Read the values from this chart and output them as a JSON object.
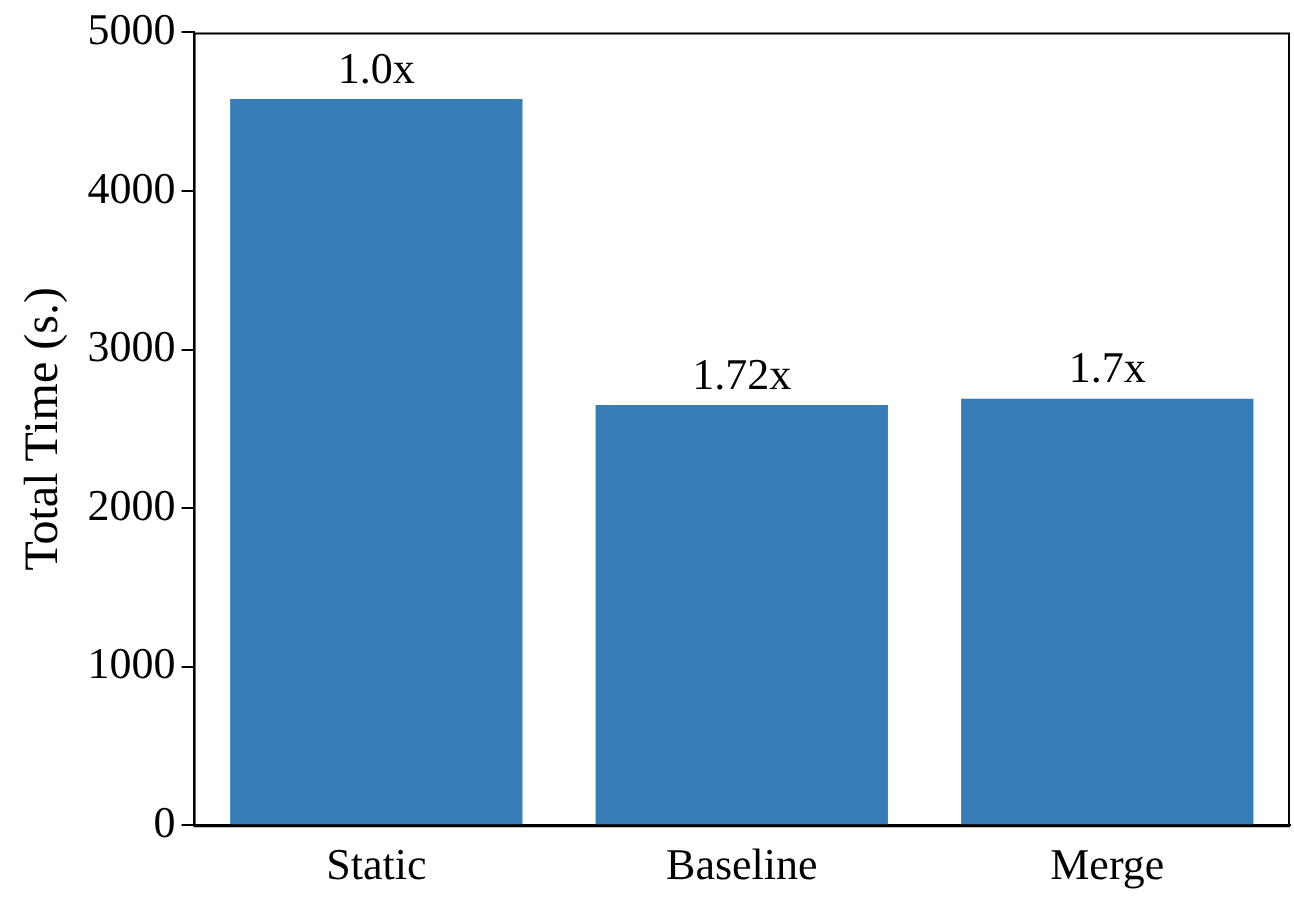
{
  "chart_data": {
    "type": "bar",
    "ylabel": "Total Time (s.)",
    "categories": [
      "Static",
      "Baseline",
      "Merge"
    ],
    "values": [
      4580,
      2650,
      2690
    ],
    "annotations": [
      {
        "text": "1.0x",
        "x": "Static",
        "y": 4580
      },
      {
        "text": "1.72x",
        "x": "Baseline",
        "y": 2650
      },
      {
        "text": "1.7x",
        "x": "Merge",
        "y": 2690
      }
    ],
    "color": "#377eb8",
    "ylim": [
      0,
      5000
    ],
    "yticks": [
      0,
      1000,
      2000,
      3000,
      4000,
      5000
    ],
    "grid": false,
    "legend": false
  }
}
